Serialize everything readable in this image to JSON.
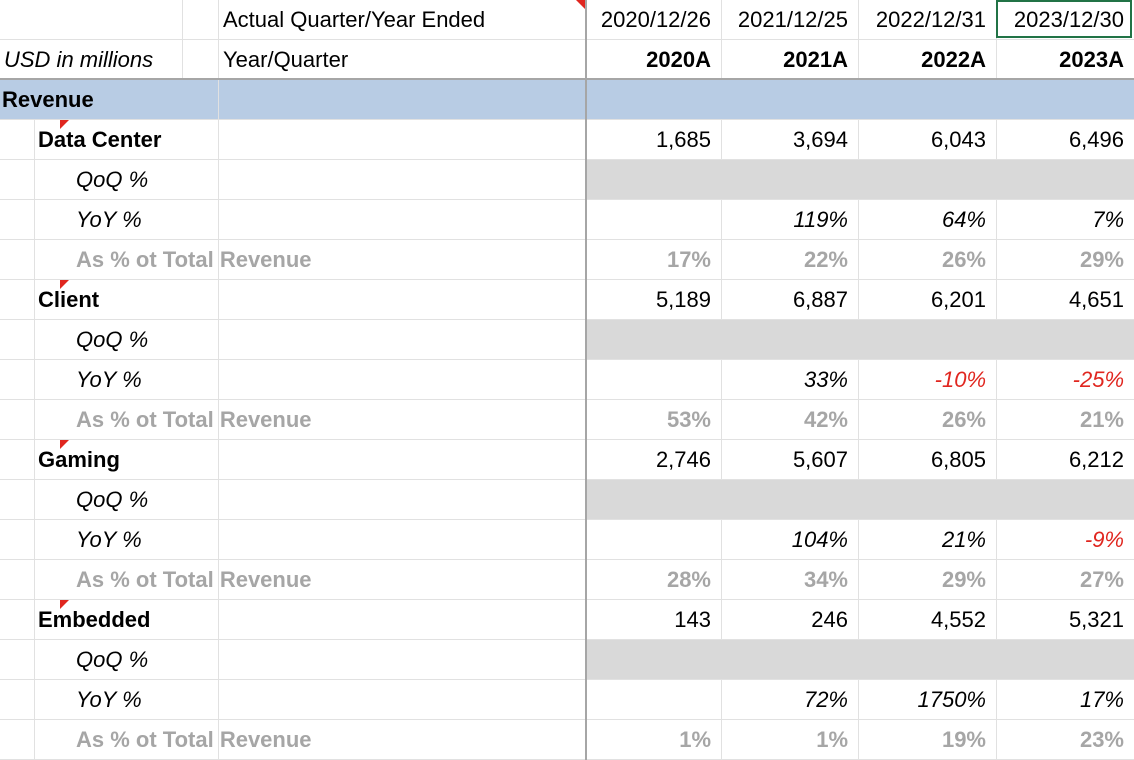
{
  "header": {
    "title_label": "Actual Quarter/Year Ended",
    "dates": [
      "2020/12/26",
      "2021/12/25",
      "2022/12/31",
      "2023/12/30"
    ],
    "units_label": "USD in millions",
    "period_label": "Year/Quarter",
    "periods": [
      "2020A",
      "2021A",
      "2022A",
      "2023A"
    ]
  },
  "section": {
    "label": "Revenue"
  },
  "segments": [
    {
      "name": "Data Center",
      "values": [
        "1,685",
        "3,694",
        "6,043",
        "6,496"
      ],
      "qoq_label": "QoQ %",
      "yoy_label": "YoY %",
      "yoy": [
        "",
        "119%",
        "64%",
        "7%"
      ],
      "pct_label": "As % ot Total Revenue",
      "pct": [
        "17%",
        "22%",
        "26%",
        "29%"
      ]
    },
    {
      "name": "Client",
      "values": [
        "5,189",
        "6,887",
        "6,201",
        "4,651"
      ],
      "qoq_label": "QoQ %",
      "yoy_label": "YoY %",
      "yoy": [
        "",
        "33%",
        "-10%",
        "-25%"
      ],
      "pct_label": "As % ot Total Revenue",
      "pct": [
        "53%",
        "42%",
        "26%",
        "21%"
      ]
    },
    {
      "name": "Gaming",
      "values": [
        "2,746",
        "5,607",
        "6,805",
        "6,212"
      ],
      "qoq_label": "QoQ %",
      "yoy_label": "YoY %",
      "yoy": [
        "",
        "104%",
        "21%",
        "-9%"
      ],
      "pct_label": "As % ot Total Revenue",
      "pct": [
        "28%",
        "34%",
        "29%",
        "27%"
      ]
    },
    {
      "name": "Embedded",
      "values": [
        "143",
        "246",
        "4,552",
        "5,321"
      ],
      "qoq_label": "QoQ %",
      "yoy_label": "YoY %",
      "yoy": [
        "",
        "72%",
        "1750%",
        "17%"
      ],
      "pct_label": "As % ot Total Revenue",
      "pct": [
        "1%",
        "1%",
        "19%",
        "23%"
      ]
    }
  ],
  "colors": {
    "section_band": "#b8cce4",
    "qoq_fill": "#d9d9d9",
    "negative": "#e0261f",
    "muted_text": "#a6a6a6",
    "selection_border": "#217346"
  }
}
